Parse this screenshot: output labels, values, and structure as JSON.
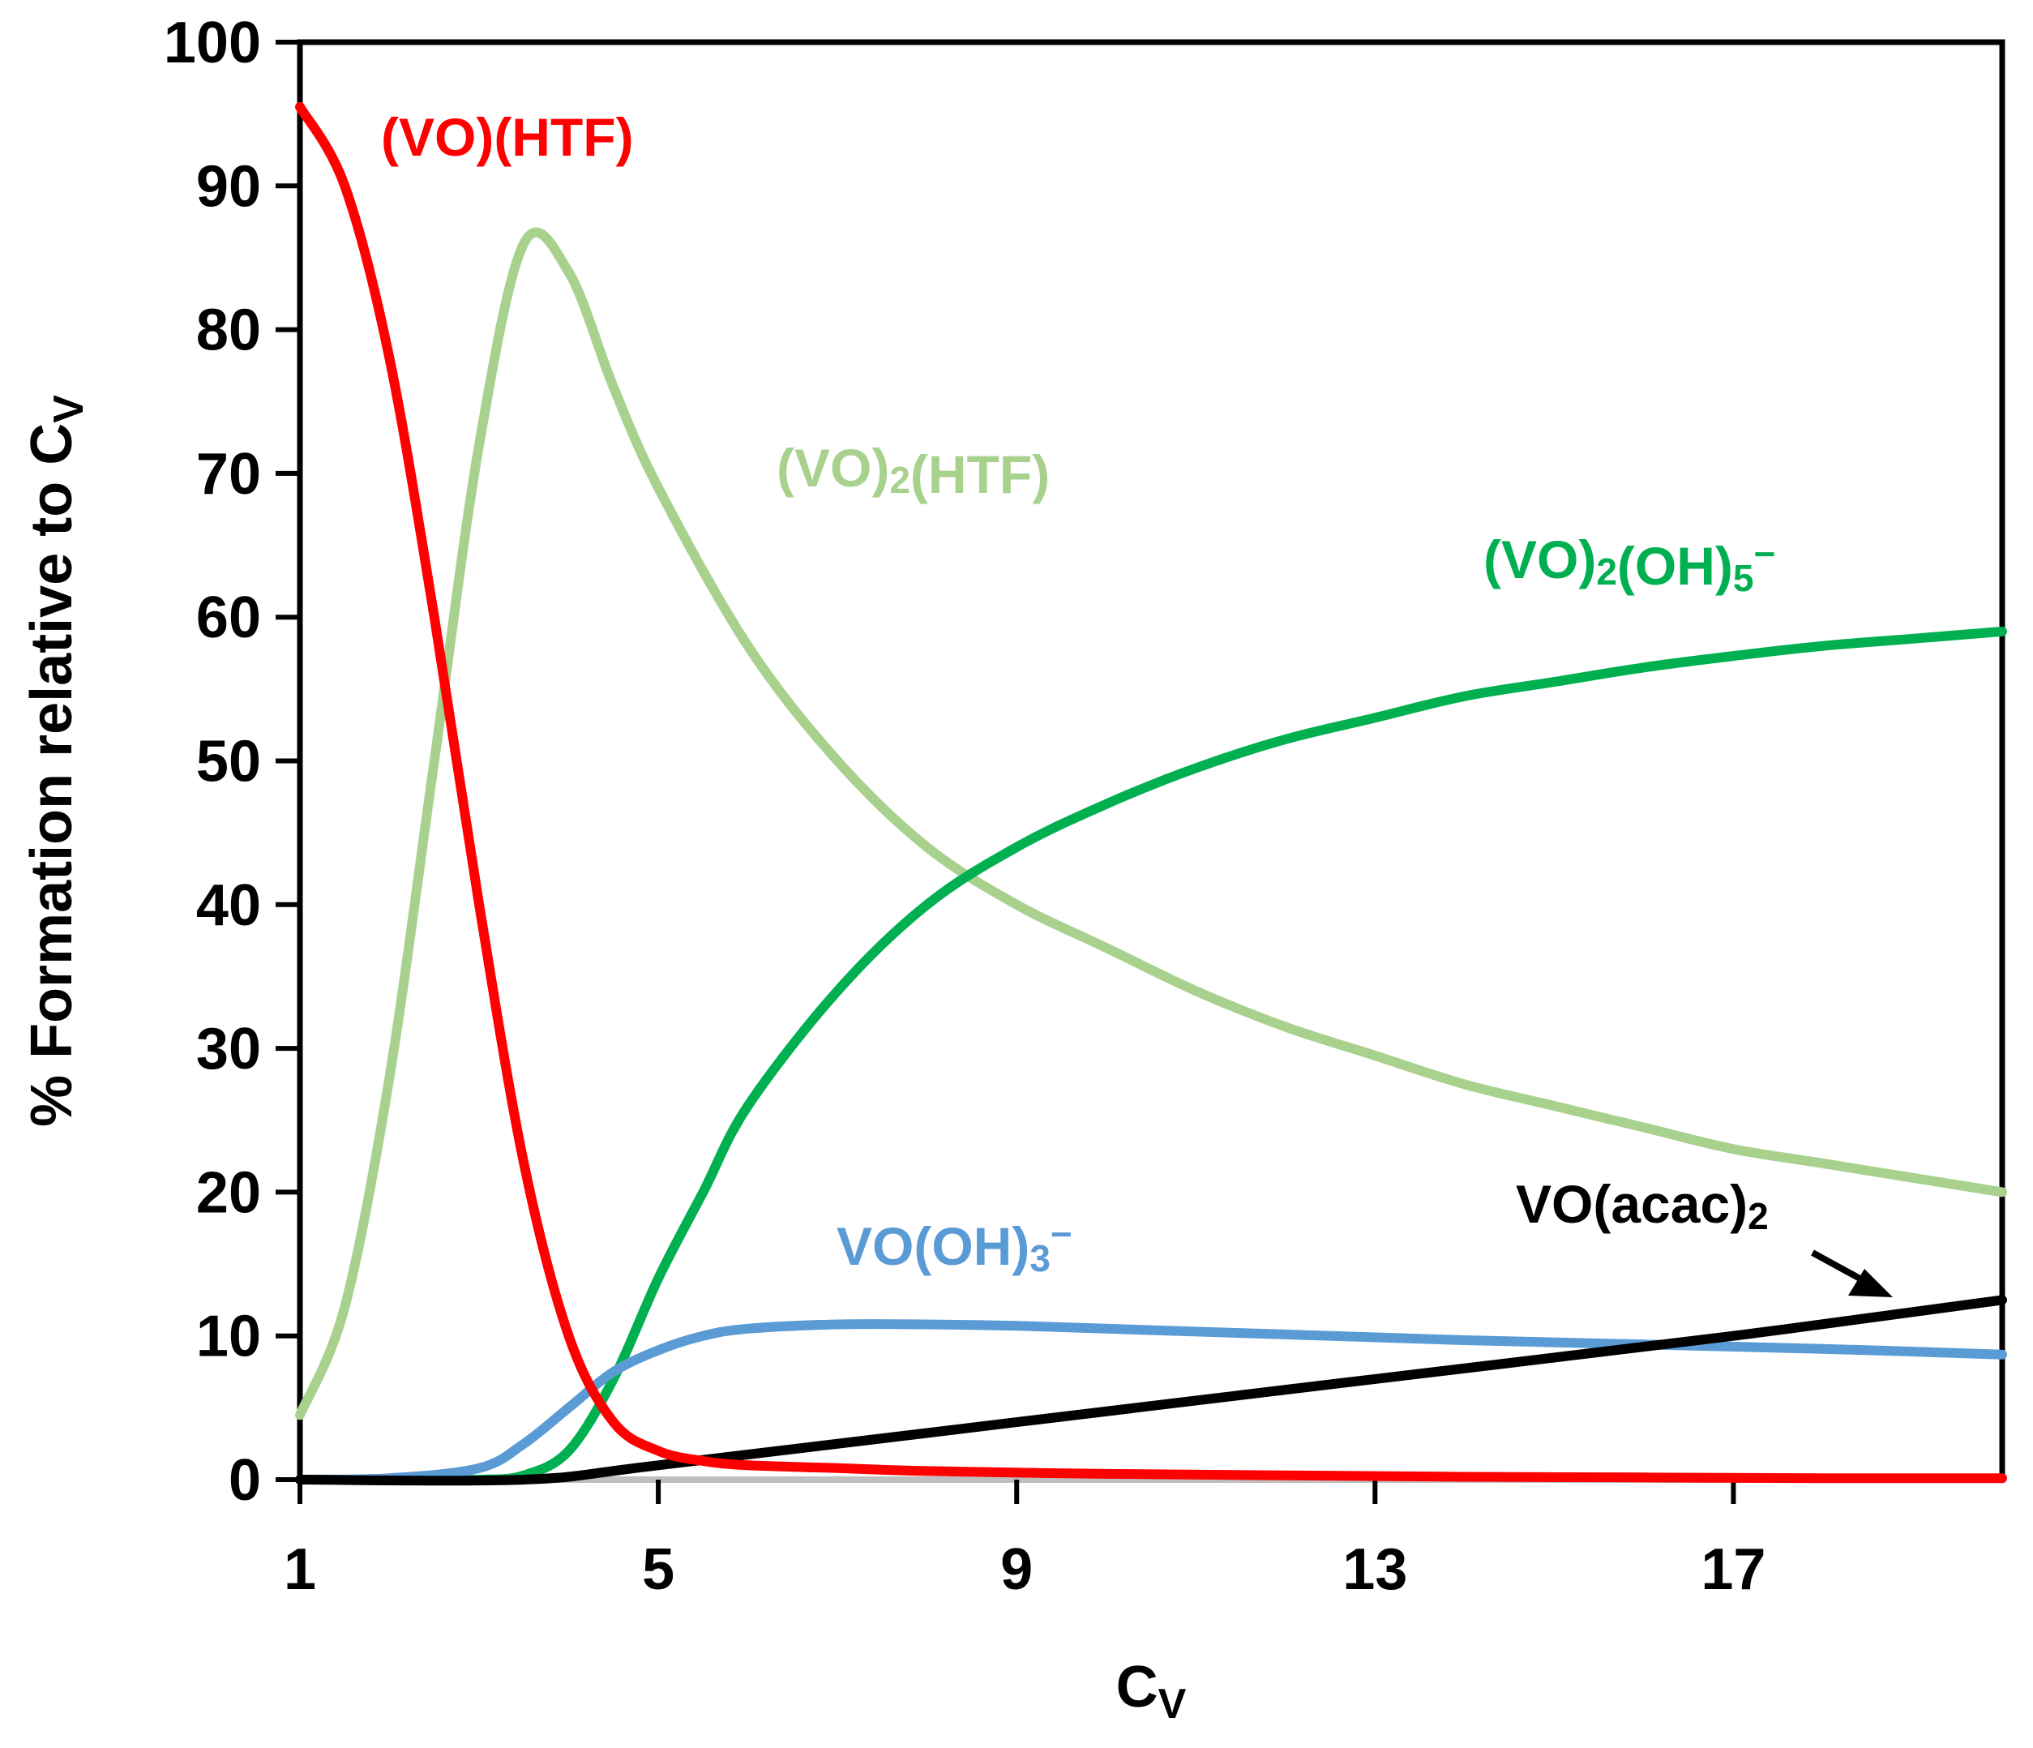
{
  "chart_data": {
    "type": "line",
    "title": "",
    "xlabel": {
      "main": "C",
      "sub": "V"
    },
    "ylabel": {
      "main": "% Formation relative to C",
      "sub": "V"
    },
    "xlim": [
      1,
      20
    ],
    "ylim": [
      0,
      100
    ],
    "x_ticks": [
      "1",
      "5",
      "9",
      "13",
      "17"
    ],
    "x_tick_values": [
      1,
      5,
      9,
      13,
      17
    ],
    "y_ticks": [
      "0",
      "10",
      "20",
      "30",
      "40",
      "50",
      "60",
      "70",
      "80",
      "90",
      "100"
    ],
    "y_tick_values": [
      0,
      10,
      20,
      30,
      40,
      50,
      60,
      70,
      80,
      90,
      100
    ],
    "grid": false,
    "series": [
      {
        "key": "vo_htf",
        "name": "(VO)(HTF)",
        "label_parts": [
          {
            "t": "(VO)(HTF)",
            "sub": false
          }
        ],
        "color": "#ff0000",
        "x": [
          1,
          1.5,
          2,
          2.5,
          3,
          3.5,
          4,
          4.5,
          5,
          5.5,
          6,
          7,
          8,
          10,
          12,
          14,
          16,
          18,
          20
        ],
        "y": [
          95.5,
          90,
          78,
          60,
          40,
          22,
          10,
          4,
          2,
          1.3,
          1,
          0.8,
          0.6,
          0.4,
          0.3,
          0.2,
          0.15,
          0.1,
          0.1
        ]
      },
      {
        "key": "vo2_htf",
        "name": "(VO)2(HTF)",
        "label_parts": [
          {
            "t": "(VO)",
            "sub": false
          },
          {
            "t": "2",
            "sub": true
          },
          {
            "t": "(HTF)",
            "sub": false
          }
        ],
        "color": "#a9d18e",
        "x": [
          1,
          1.5,
          2,
          2.5,
          3,
          3.5,
          4,
          4.5,
          5,
          6,
          7,
          8,
          9,
          10,
          11,
          12,
          13,
          14,
          15,
          16,
          17,
          18,
          19,
          20
        ],
        "y": [
          4.5,
          12,
          28,
          50,
          72,
          86,
          84,
          76,
          69,
          58,
          50,
          44,
          40,
          37,
          34,
          31.5,
          29.5,
          27.5,
          26,
          24.5,
          23,
          22,
          21,
          20
        ]
      },
      {
        "key": "vo2_oh5",
        "name": "(VO)2(OH)5−",
        "label_parts": [
          {
            "t": "(VO)",
            "sub": false
          },
          {
            "t": "2",
            "sub": true
          },
          {
            "t": "(OH)",
            "sub": false
          },
          {
            "t": "5",
            "sub": true
          },
          {
            "t": "−",
            "sub": false,
            "sup": true
          }
        ],
        "color": "#00b050",
        "x": [
          1,
          2,
          3,
          3.5,
          4,
          4.5,
          5,
          5.5,
          6,
          7,
          8,
          9,
          10,
          11,
          12,
          13,
          14,
          15,
          16,
          17,
          18,
          19,
          20
        ],
        "y": [
          0,
          0,
          0,
          0.3,
          2,
          7,
          14,
          20,
          26,
          34,
          40,
          44,
          47,
          49.5,
          51.5,
          53,
          54.5,
          55.5,
          56.5,
          57.3,
          58,
          58.5,
          59
        ]
      },
      {
        "key": "vo_oh3",
        "name": "VO(OH)3−",
        "label_parts": [
          {
            "t": "VO(OH)",
            "sub": false
          },
          {
            "t": "3",
            "sub": true
          },
          {
            "t": "−",
            "sub": false,
            "sup": true
          }
        ],
        "color": "#5b9bd5",
        "x": [
          1,
          2,
          3,
          3.5,
          4,
          4.5,
          5,
          5.5,
          6,
          7,
          8,
          9,
          10,
          12,
          14,
          16,
          18,
          20
        ],
        "y": [
          0,
          0.1,
          0.8,
          2.5,
          5,
          7.5,
          9,
          10,
          10.5,
          10.8,
          10.8,
          10.7,
          10.5,
          10.1,
          9.7,
          9.4,
          9.1,
          8.7
        ]
      },
      {
        "key": "vo_acac2",
        "name": "VO(acac)2",
        "label_parts": [
          {
            "t": "VO(acac)",
            "sub": false
          },
          {
            "t": "2",
            "sub": true
          }
        ],
        "color": "#000000",
        "x": [
          1,
          3.5,
          5,
          9,
          13,
          17,
          20
        ],
        "y": [
          0,
          0,
          1,
          4,
          7,
          10,
          12.5
        ]
      }
    ],
    "annotations": [
      {
        "series": "vo_acac2",
        "text": "VO(acac)2",
        "arrow": true
      }
    ]
  }
}
